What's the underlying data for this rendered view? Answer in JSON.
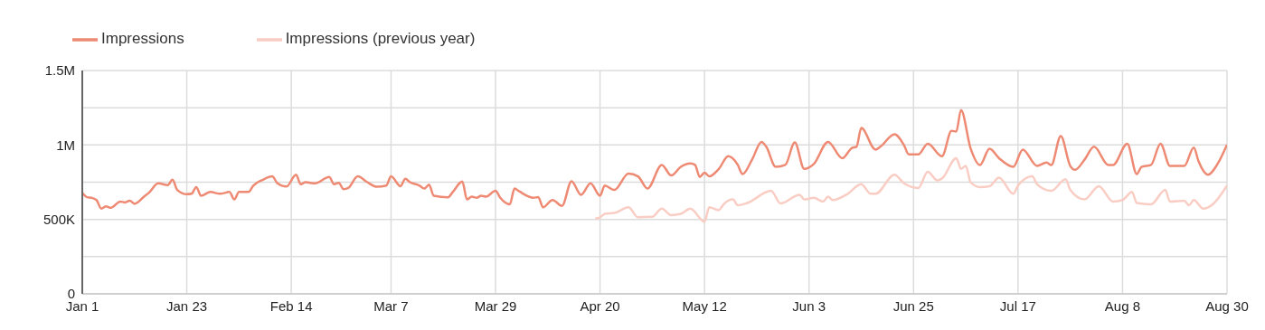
{
  "chart_data": {
    "type": "line",
    "legend": "top left",
    "grid": true,
    "xlim": [
      "--01-01",
      "--08-30"
    ],
    "xticks": [
      {
        "value": "--01-01",
        "label": "Jan 1"
      },
      {
        "value": "--01-23",
        "label": "Jan 23"
      },
      {
        "value": "--02-14",
        "label": "Feb 14"
      },
      {
        "value": "--03-07",
        "label": "Mar 7"
      },
      {
        "value": "--03-29",
        "label": "Mar 29"
      },
      {
        "value": "--04-20",
        "label": "Apr 20"
      },
      {
        "value": "--05-12",
        "label": "May 12"
      },
      {
        "value": "--06-03",
        "label": "Jun 3"
      },
      {
        "value": "--06-25",
        "label": "Jun 25"
      },
      {
        "value": "--07-17",
        "label": "Jul 17"
      },
      {
        "value": "--08-08",
        "label": "Aug 8"
      },
      {
        "value": "--08-30",
        "label": "Aug 30"
      }
    ],
    "ylim": [
      0,
      1500000
    ],
    "yticks": [
      0,
      {
        "value": 250000,
        "label": null
      },
      {
        "value": 500000,
        "label": "500K"
      },
      {
        "value": 750000,
        "label": null
      },
      {
        "value": 1000000,
        "label": "1M"
      },
      {
        "value": 1250000,
        "label": null
      },
      {
        "value": 1500000,
        "label": "1.5M"
      }
    ],
    "series": [
      {
        "name": "Impressions",
        "color": "#ee8a73",
        "x": [
          "--01-01",
          "--01-02",
          "--01-03",
          "--01-04",
          "--01-05",
          "--01-06",
          "--01-07",
          "--01-09",
          "--01-10",
          "--01-11",
          "--01-12",
          "--01-14",
          "--01-15",
          "--01-17",
          "--01-19",
          "--01-20",
          "--01-21",
          "--01-23",
          "--01-24",
          "--01-25",
          "--01-26",
          "--01-28",
          "--01-30",
          "--02-01",
          "--02-02",
          "--02-03",
          "--02-05",
          "--02-06",
          "--02-08",
          "--02-10",
          "--02-11",
          "--02-13",
          "--02-15",
          "--02-16",
          "--02-17",
          "--02-19",
          "--02-22",
          "--02-23",
          "--02-24",
          "--02-25",
          "--02-26",
          "--02-28",
          "--03-02",
          "--03-04",
          "--03-06",
          "--03-07",
          "--03-09",
          "--03-10",
          "--03-11",
          "--03-13",
          "--03-14",
          "--03-15",
          "--03-16",
          "--03-19",
          "--03-20",
          "--03-22",
          "--03-23",
          "--03-24",
          "--03-25",
          "--03-26",
          "--03-27",
          "--03-29",
          "--03-30",
          "--04-01",
          "--04-02",
          "--04-03",
          "--04-06",
          "--04-07",
          "--04-08",
          "--04-10",
          "--04-12",
          "--04-14",
          "--04-16",
          "--04-18",
          "--04-20",
          "--04-21",
          "--04-23",
          "--04-26",
          "--04-28",
          "--04-30",
          "--05-03",
          "--05-05",
          "--05-07",
          "--05-09",
          "--05-10",
          "--05-11",
          "--05-12",
          "--05-13",
          "--05-15",
          "--05-17",
          "--05-19",
          "--05-20",
          "--05-22",
          "--05-24",
          "--05-25",
          "--05-27",
          "--05-29",
          "--05-31",
          "--06-02",
          "--06-04",
          "--06-07",
          "--06-10",
          "--06-12",
          "--06-13",
          "--06-14",
          "--06-17",
          "--06-18",
          "--06-21",
          "--06-23",
          "--06-24",
          "--06-26",
          "--06-28",
          "--07-01",
          "--07-03",
          "--07-04",
          "--07-05",
          "--07-07",
          "--07-09",
          "--07-11",
          "--07-13",
          "--07-16",
          "--07-18",
          "--07-21",
          "--07-23",
          "--07-24",
          "--07-26",
          "--07-28",
          "--07-29",
          "--07-31",
          "--08-02",
          "--08-05",
          "--08-06",
          "--08-09",
          "--08-11",
          "--08-12",
          "--08-14",
          "--08-16",
          "--08-18",
          "--08-21",
          "--08-23",
          "--08-24",
          "--08-26",
          "--08-28",
          "--08-30"
        ],
        "values": [
          678000,
          649000,
          645000,
          630000,
          572000,
          587000,
          578000,
          620000,
          614000,
          626000,
          605000,
          653000,
          678000,
          742000,
          731000,
          766000,
          698000,
          669000,
          672000,
          717000,
          659000,
          684000,
          672000,
          684000,
          634000,
          684000,
          684000,
          727000,
          766000,
          789000,
          746000,
          721000,
          800000,
          736000,
          750000,
          742000,
          785000,
          736000,
          746000,
          703000,
          711000,
          789000,
          750000,
          719000,
          727000,
          789000,
          723000,
          773000,
          750000,
          727000,
          707000,
          733000,
          659000,
          649000,
          684000,
          754000,
          634000,
          653000,
          645000,
          659000,
          653000,
          692000,
          645000,
          601000,
          707000,
          688000,
          645000,
          650000,
          581000,
          630000,
          591000,
          756000,
          665000,
          742000,
          659000,
          727000,
          698000,
          808000,
          789000,
          707000,
          866000,
          795000,
          853000,
          876000,
          866000,
          785000,
          814000,
          789000,
          839000,
          924000,
          866000,
          804000,
          901000,
          1021000,
          988000,
          853000,
          866000,
          1017000,
          839000,
          872000,
          1021000,
          911000,
          979000,
          988000,
          1114000,
          969000,
          988000,
          1072000,
          998000,
          936000,
          936000,
          1008000,
          924000,
          1095000,
          1090000,
          1235000,
          979000,
          866000,
          975000,
          911000,
          853000,
          969000,
          859000,
          882000,
          865000,
          1060000,
          859000,
          833000,
          901000,
          988000,
          866000,
          866000,
          1008000,
          804000,
          853000,
          866000,
          1008000,
          859000,
          859000,
          983000,
          891000,
          800000,
          872000,
          1002000
        ]
      },
      {
        "name": "Impressions (previous year)",
        "color": "#f9cdc3",
        "x": [
          "--04-19",
          "--04-20",
          "--04-21",
          "--04-23",
          "--04-26",
          "--04-28",
          "--05-01",
          "--05-03",
          "--05-05",
          "--05-07",
          "--05-09",
          "--05-12",
          "--05-13",
          "--05-15",
          "--05-16",
          "--05-18",
          "--05-19",
          "--05-21",
          "--05-26",
          "--05-28",
          "--06-01",
          "--06-02",
          "--06-04",
          "--06-06",
          "--06-07",
          "--06-08",
          "--06-11",
          "--06-14",
          "--06-16",
          "--06-17",
          "--06-21",
          "--06-23",
          "--06-26",
          "--06-28",
          "--06-30",
          "--07-01",
          "--07-04",
          "--07-05",
          "--07-06",
          "--07-07",
          "--07-09",
          "--07-11",
          "--07-13",
          "--07-16",
          "--07-17",
          "--07-20",
          "--07-21",
          "--07-24",
          "--07-27",
          "--07-28",
          "--07-31",
          "--08-03",
          "--08-06",
          "--08-08",
          "--08-10",
          "--08-11",
          "--08-14",
          "--08-17",
          "--08-18",
          "--08-21",
          "--08-22",
          "--08-23",
          "--08-25",
          "--08-27",
          "--08-30"
        ],
        "values": [
          505000,
          514000,
          537000,
          543000,
          581000,
          514000,
          517000,
          572000,
          529000,
          537000,
          572000,
          485000,
          581000,
          562000,
          601000,
          634000,
          595000,
          610000,
          692000,
          607000,
          665000,
          634000,
          645000,
          620000,
          653000,
          630000,
          669000,
          736000,
          672000,
          672000,
          800000,
          742000,
          711000,
          820000,
          762000,
          775000,
          911000,
          839000,
          859000,
          750000,
          717000,
          723000,
          781000,
          672000,
          727000,
          789000,
          736000,
          692000,
          769000,
          698000,
          634000,
          723000,
          620000,
          630000,
          684000,
          610000,
          601000,
          698000,
          620000,
          626000,
          595000,
          630000,
          572000,
          601000,
          727000
        ]
      }
    ]
  }
}
